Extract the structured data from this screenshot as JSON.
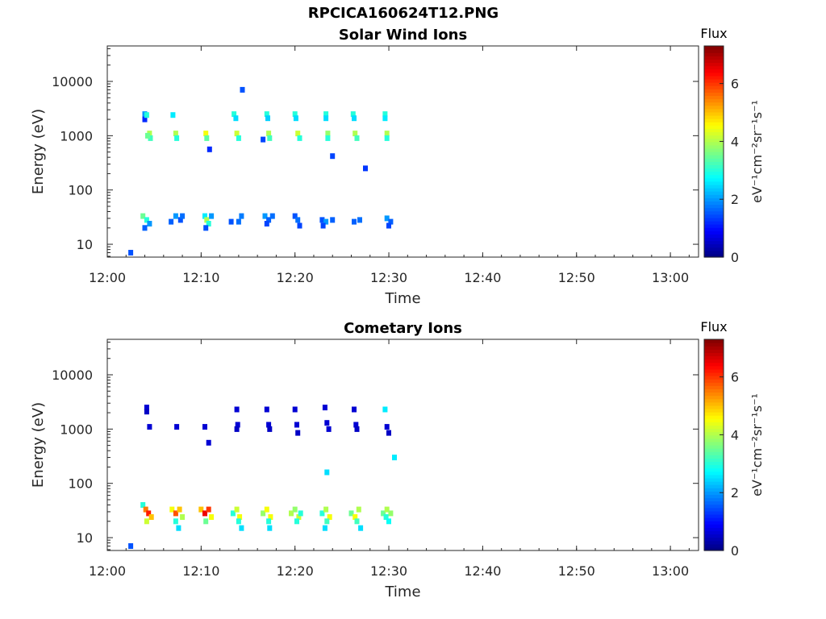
{
  "figure": {
    "title": "RPCICA160624T12.PNG"
  },
  "chart_data": [
    {
      "type": "heatmap",
      "title": "Solar Wind Ions",
      "xlabel": "Time",
      "ylabel": "Energy (eV)",
      "y_scale": "log",
      "xlim": [
        "12:00",
        "13:03"
      ],
      "ylim": [
        5.8,
        45000
      ],
      "x_ticks": [
        "12:00",
        "12:10",
        "12:20",
        "12:30",
        "12:40",
        "12:50",
        "13:00"
      ],
      "y_ticks": [
        "10",
        "100",
        "1000",
        "10000"
      ],
      "colorbar": {
        "title": "Flux",
        "label": "eV⁻¹cm⁻²sr⁻¹s⁻¹",
        "range": [
          0,
          7.3
        ],
        "ticks": [
          "0",
          "2",
          "4",
          "6"
        ]
      },
      "cells": [
        {
          "t": "12:02.5",
          "e": 7,
          "v": 1.5
        },
        {
          "t": "12:04.0",
          "e": 2500,
          "v": 2.0
        },
        {
          "t": "12:04.0",
          "e": 2000,
          "v": 1.2
        },
        {
          "t": "12:04.2",
          "e": 2400,
          "v": 3.0
        },
        {
          "t": "12:04.5",
          "e": 1100,
          "v": 4.0
        },
        {
          "t": "12:04.6",
          "e": 900,
          "v": 3.2
        },
        {
          "t": "12:04.3",
          "e": 1000,
          "v": 3.5
        },
        {
          "t": "12:07.0",
          "e": 2400,
          "v": 2.6
        },
        {
          "t": "12:07.3",
          "e": 1100,
          "v": 4.0
        },
        {
          "t": "12:07.4",
          "e": 900,
          "v": 3.0
        },
        {
          "t": "12:10.5",
          "e": 1100,
          "v": 4.5
        },
        {
          "t": "12:10.6",
          "e": 900,
          "v": 3.4
        },
        {
          "t": "12:10.9",
          "e": 560,
          "v": 1.2
        },
        {
          "t": "12:13.5",
          "e": 2500,
          "v": 3.0
        },
        {
          "t": "12:13.7",
          "e": 2100,
          "v": 2.5
        },
        {
          "t": "12:13.8",
          "e": 1100,
          "v": 4.2
        },
        {
          "t": "12:14.0",
          "e": 900,
          "v": 3.0
        },
        {
          "t": "12:14.4",
          "e": 7000,
          "v": 1.5
        },
        {
          "t": "12:16.6",
          "e": 850,
          "v": 1.4
        },
        {
          "t": "12:17.0",
          "e": 2500,
          "v": 3.0
        },
        {
          "t": "12:17.1",
          "e": 2100,
          "v": 2.4
        },
        {
          "t": "12:17.2",
          "e": 1100,
          "v": 4.0
        },
        {
          "t": "12:17.3",
          "e": 900,
          "v": 3.2
        },
        {
          "t": "12:20.0",
          "e": 2500,
          "v": 3.0
        },
        {
          "t": "12:20.1",
          "e": 2100,
          "v": 2.5
        },
        {
          "t": "12:20.3",
          "e": 1100,
          "v": 4.2
        },
        {
          "t": "12:20.5",
          "e": 900,
          "v": 3.0
        },
        {
          "t": "12:23.3",
          "e": 2500,
          "v": 3.0
        },
        {
          "t": "12:23.3",
          "e": 2100,
          "v": 2.5
        },
        {
          "t": "12:23.5",
          "e": 1100,
          "v": 3.8
        },
        {
          "t": "12:23.5",
          "e": 900,
          "v": 3.0
        },
        {
          "t": "12:24.0",
          "e": 420,
          "v": 1.4
        },
        {
          "t": "12:26.2",
          "e": 2500,
          "v": 3.0
        },
        {
          "t": "12:26.3",
          "e": 2100,
          "v": 2.5
        },
        {
          "t": "12:26.4",
          "e": 1100,
          "v": 4.0
        },
        {
          "t": "12:26.6",
          "e": 900,
          "v": 3.2
        },
        {
          "t": "12:27.5",
          "e": 250,
          "v": 1.3
        },
        {
          "t": "12:29.6",
          "e": 2500,
          "v": 3.0
        },
        {
          "t": "12:29.6",
          "e": 2100,
          "v": 2.6
        },
        {
          "t": "12:29.8",
          "e": 1100,
          "v": 4.0
        },
        {
          "t": "12:29.8",
          "e": 900,
          "v": 3.0
        },
        {
          "t": "12:03.8",
          "e": 33,
          "v": 3.5
        },
        {
          "t": "12:04.2",
          "e": 28,
          "v": 3.0
        },
        {
          "t": "12:04.5",
          "e": 24,
          "v": 2.0
        },
        {
          "t": "12:04.0",
          "e": 20,
          "v": 1.6
        },
        {
          "t": "12:07.3",
          "e": 33,
          "v": 2.0
        },
        {
          "t": "12:07.8",
          "e": 28,
          "v": 1.5
        },
        {
          "t": "12:08.0",
          "e": 33,
          "v": 1.7
        },
        {
          "t": "12:06.8",
          "e": 26,
          "v": 1.6
        },
        {
          "t": "12:10.4",
          "e": 33,
          "v": 2.6
        },
        {
          "t": "12:10.6",
          "e": 28,
          "v": 4.0
        },
        {
          "t": "12:10.8",
          "e": 24,
          "v": 3.0
        },
        {
          "t": "12:11.1",
          "e": 33,
          "v": 2.0
        },
        {
          "t": "12:10.5",
          "e": 20,
          "v": 1.5
        },
        {
          "t": "12:13.2",
          "e": 26,
          "v": 1.5
        },
        {
          "t": "12:14.0",
          "e": 26,
          "v": 1.7
        },
        {
          "t": "12:14.3",
          "e": 33,
          "v": 1.8
        },
        {
          "t": "12:16.8",
          "e": 33,
          "v": 2.0
        },
        {
          "t": "12:17.2",
          "e": 28,
          "v": 1.6
        },
        {
          "t": "12:17.6",
          "e": 33,
          "v": 1.7
        },
        {
          "t": "12:17.0",
          "e": 24,
          "v": 1.4
        },
        {
          "t": "12:20.0",
          "e": 33,
          "v": 1.5
        },
        {
          "t": "12:20.3",
          "e": 28,
          "v": 1.7
        },
        {
          "t": "12:20.5",
          "e": 22,
          "v": 1.4
        },
        {
          "t": "12:22.9",
          "e": 28,
          "v": 1.5
        },
        {
          "t": "12:23.3",
          "e": 26,
          "v": 2.0
        },
        {
          "t": "12:24.0",
          "e": 28,
          "v": 1.6
        },
        {
          "t": "12:23.0",
          "e": 22,
          "v": 1.4
        },
        {
          "t": "12:26.3",
          "e": 26,
          "v": 1.6
        },
        {
          "t": "12:26.9",
          "e": 28,
          "v": 1.7
        },
        {
          "t": "12:29.8",
          "e": 30,
          "v": 2.0
        },
        {
          "t": "12:30.2",
          "e": 26,
          "v": 1.6
        },
        {
          "t": "12:30.0",
          "e": 22,
          "v": 1.4
        }
      ]
    },
    {
      "type": "heatmap",
      "title": "Cometary Ions",
      "xlabel": "Time",
      "ylabel": "Energy (eV)",
      "y_scale": "log",
      "xlim": [
        "12:00",
        "13:03"
      ],
      "ylim": [
        5.8,
        45000
      ],
      "x_ticks": [
        "12:00",
        "12:10",
        "12:20",
        "12:30",
        "12:40",
        "12:50",
        "13:00"
      ],
      "y_ticks": [
        "10",
        "100",
        "1000",
        "10000"
      ],
      "colorbar": {
        "title": "Flux",
        "label": "eV⁻¹cm⁻²sr⁻¹s⁻¹",
        "range": [
          0,
          7.3
        ],
        "ticks": [
          "0",
          "2",
          "4",
          "6"
        ]
      },
      "cells": [
        {
          "t": "12:02.5",
          "e": 7,
          "v": 1.5
        },
        {
          "t": "12:04.2",
          "e": 2500,
          "v": 0.6
        },
        {
          "t": "12:04.2",
          "e": 2100,
          "v": 0.5
        },
        {
          "t": "12:04.5",
          "e": 1100,
          "v": 0.6
        },
        {
          "t": "12:07.4",
          "e": 1100,
          "v": 0.6
        },
        {
          "t": "12:10.4",
          "e": 1100,
          "v": 0.6
        },
        {
          "t": "12:10.8",
          "e": 560,
          "v": 0.6
        },
        {
          "t": "12:13.8",
          "e": 2300,
          "v": 0.6
        },
        {
          "t": "12:13.9",
          "e": 1200,
          "v": 0.6
        },
        {
          "t": "12:13.8",
          "e": 1000,
          "v": 0.5
        },
        {
          "t": "12:17.0",
          "e": 2300,
          "v": 0.6
        },
        {
          "t": "12:17.2",
          "e": 1200,
          "v": 0.6
        },
        {
          "t": "12:17.3",
          "e": 1000,
          "v": 0.5
        },
        {
          "t": "12:20.0",
          "e": 2300,
          "v": 0.6
        },
        {
          "t": "12:20.2",
          "e": 1200,
          "v": 0.6
        },
        {
          "t": "12:20.3",
          "e": 850,
          "v": 0.5
        },
        {
          "t": "12:23.2",
          "e": 2500,
          "v": 0.6
        },
        {
          "t": "12:23.4",
          "e": 1300,
          "v": 0.6
        },
        {
          "t": "12:23.6",
          "e": 1000,
          "v": 0.6
        },
        {
          "t": "12:23.4",
          "e": 160,
          "v": 2.5
        },
        {
          "t": "12:26.3",
          "e": 2300,
          "v": 0.6
        },
        {
          "t": "12:26.5",
          "e": 1200,
          "v": 0.6
        },
        {
          "t": "12:26.6",
          "e": 1000,
          "v": 0.5
        },
        {
          "t": "12:29.6",
          "e": 2300,
          "v": 2.6
        },
        {
          "t": "12:29.8",
          "e": 1100,
          "v": 0.6
        },
        {
          "t": "12:30.0",
          "e": 850,
          "v": 0.5
        },
        {
          "t": "12:30.6",
          "e": 300,
          "v": 2.6
        },
        {
          "t": "12:03.8",
          "e": 40,
          "v": 3.0
        },
        {
          "t": "12:04.1",
          "e": 33,
          "v": 5.5
        },
        {
          "t": "12:04.4",
          "e": 28,
          "v": 6.2
        },
        {
          "t": "12:04.7",
          "e": 24,
          "v": 5.0
        },
        {
          "t": "12:04.2",
          "e": 20,
          "v": 4.2
        },
        {
          "t": "12:06.9",
          "e": 33,
          "v": 4.5
        },
        {
          "t": "12:07.3",
          "e": 28,
          "v": 5.8
        },
        {
          "t": "12:07.7",
          "e": 33,
          "v": 5.0
        },
        {
          "t": "12:08.0",
          "e": 24,
          "v": 4.0
        },
        {
          "t": "12:07.3",
          "e": 20,
          "v": 3.0
        },
        {
          "t": "12:07.6",
          "e": 15,
          "v": 2.5
        },
        {
          "t": "12:10.0",
          "e": 33,
          "v": 5.0
        },
        {
          "t": "12:10.4",
          "e": 28,
          "v": 6.5
        },
        {
          "t": "12:10.8",
          "e": 33,
          "v": 6.0
        },
        {
          "t": "12:11.1",
          "e": 24,
          "v": 4.5
        },
        {
          "t": "12:10.5",
          "e": 20,
          "v": 3.5
        },
        {
          "t": "12:13.4",
          "e": 28,
          "v": 3.0
        },
        {
          "t": "12:13.8",
          "e": 33,
          "v": 4.2
        },
        {
          "t": "12:14.1",
          "e": 24,
          "v": 4.5
        },
        {
          "t": "12:14.0",
          "e": 20,
          "v": 3.0
        },
        {
          "t": "12:14.3",
          "e": 15,
          "v": 2.5
        },
        {
          "t": "12:16.6",
          "e": 28,
          "v": 3.8
        },
        {
          "t": "12:17.0",
          "e": 33,
          "v": 4.5
        },
        {
          "t": "12:17.4",
          "e": 24,
          "v": 4.5
        },
        {
          "t": "12:17.2",
          "e": 20,
          "v": 3.0
        },
        {
          "t": "12:17.3",
          "e": 15,
          "v": 2.5
        },
        {
          "t": "12:19.6",
          "e": 28,
          "v": 4.0
        },
        {
          "t": "12:20.0",
          "e": 33,
          "v": 3.8
        },
        {
          "t": "12:20.4",
          "e": 24,
          "v": 4.2
        },
        {
          "t": "12:20.6",
          "e": 28,
          "v": 3.0
        },
        {
          "t": "12:20.2",
          "e": 20,
          "v": 3.0
        },
        {
          "t": "12:22.9",
          "e": 28,
          "v": 3.0
        },
        {
          "t": "12:23.3",
          "e": 33,
          "v": 4.0
        },
        {
          "t": "12:23.7",
          "e": 24,
          "v": 4.5
        },
        {
          "t": "12:23.4",
          "e": 20,
          "v": 3.2
        },
        {
          "t": "12:23.2",
          "e": 15,
          "v": 2.5
        },
        {
          "t": "12:26.0",
          "e": 28,
          "v": 3.5
        },
        {
          "t": "12:26.4",
          "e": 24,
          "v": 4.5
        },
        {
          "t": "12:26.8",
          "e": 33,
          "v": 4.0
        },
        {
          "t": "12:26.6",
          "e": 20,
          "v": 3.2
        },
        {
          "t": "12:27.0",
          "e": 15,
          "v": 2.5
        },
        {
          "t": "12:29.4",
          "e": 28,
          "v": 3.5
        },
        {
          "t": "12:29.8",
          "e": 33,
          "v": 4.0
        },
        {
          "t": "12:30.2",
          "e": 28,
          "v": 3.8
        },
        {
          "t": "12:29.7",
          "e": 24,
          "v": 3.0
        },
        {
          "t": "12:30.0",
          "e": 20,
          "v": 2.8
        }
      ]
    }
  ]
}
